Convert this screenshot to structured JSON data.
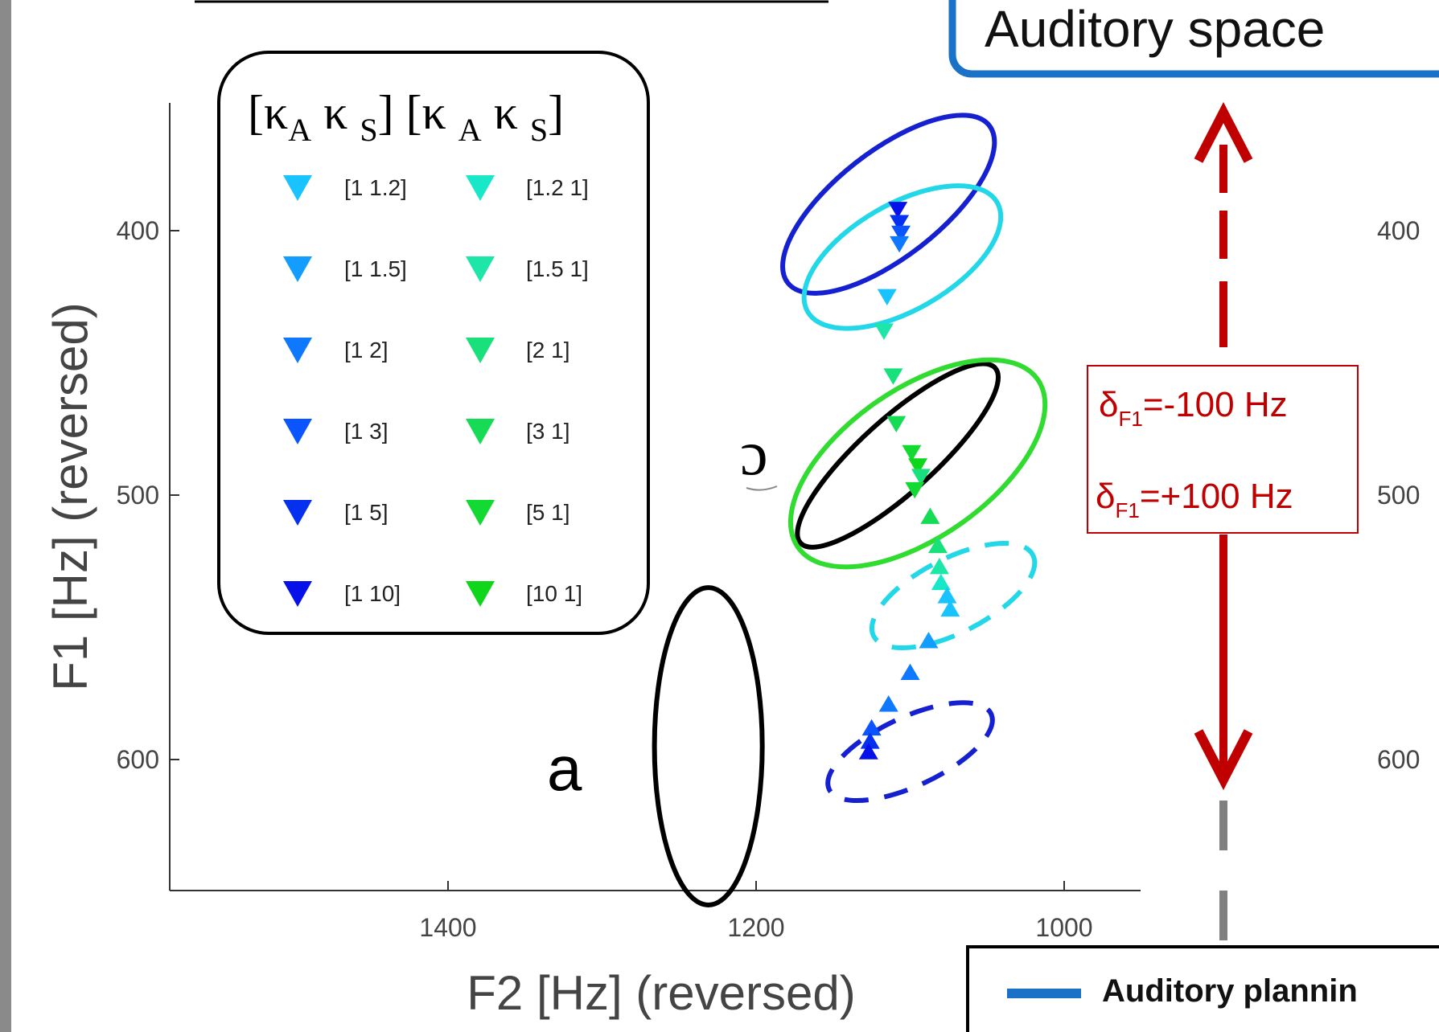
{
  "chart_data": {
    "type": "scatter",
    "xlabel": "F2 [Hz] (reversed)",
    "ylabel": "F1 [Hz] (reversed)",
    "x_reversed": true,
    "y_reversed": true,
    "xlim": [
      1000,
      1580
    ],
    "ylim": [
      350,
      650
    ],
    "xticks": [
      1400,
      1200,
      1000
    ],
    "yticks": [
      400,
      500,
      600
    ],
    "right_yticks": [
      400,
      500,
      600
    ],
    "vowel_labels": [
      "ɔ",
      "a"
    ],
    "legend": {
      "header": "[κA κS] [κA κS]",
      "left_column": [
        "[1 1.2]",
        "[1 1.5]",
        "[1 2]",
        "[1 3]",
        "[1 5]",
        "[1 10]"
      ],
      "right_column": [
        "[1.2 1]",
        "[1.5 1]",
        "[2 1]",
        "[3 1]",
        "[5 1]",
        "[10 1]"
      ],
      "left_colors": [
        "#19c3ff",
        "#139dff",
        "#0e78ff",
        "#0a55ff",
        "#0630f0",
        "#0511e8"
      ],
      "right_colors": [
        "#19e8c8",
        "#1de6a8",
        "#18e07a",
        "#16dc55",
        "#12da32",
        "#0fd61a"
      ]
    },
    "ellipses": [
      {
        "label": "ɔ",
        "color": "#000000",
        "style": "solid",
        "cx": 1108,
        "cy": 485,
        "rx": 85,
        "ry": 14,
        "angle": -42
      },
      {
        "label": "a",
        "color": "#000000",
        "style": "solid",
        "cx": 1231,
        "cy": 595,
        "rx": 35,
        "ry": 60,
        "angle": 0
      },
      {
        "color": "#1520d0",
        "style": "solid",
        "cx": 1114,
        "cy": 390,
        "rx": 83,
        "ry": 20,
        "angle": -38
      },
      {
        "color": "#22d8e8",
        "style": "solid",
        "cx": 1105,
        "cy": 410,
        "rx": 71,
        "ry": 20,
        "angle": -30
      },
      {
        "color": "#2fdc2f",
        "style": "solid",
        "cx": 1095,
        "cy": 488,
        "rx": 95,
        "ry": 28,
        "angle": -35
      },
      {
        "color": "#22d8e8",
        "style": "dashed",
        "cx": 1072,
        "cy": 538,
        "rx": 58,
        "ry": 14,
        "angle": -27
      },
      {
        "color": "#1520d0",
        "style": "dashed",
        "cx": 1100,
        "cy": 597,
        "rx": 58,
        "ry": 13,
        "angle": -25
      }
    ],
    "down_triangles": [
      {
        "x": 1108,
        "y": 392,
        "color": "#0511e8"
      },
      {
        "x": 1107,
        "y": 397,
        "color": "#0630f0"
      },
      {
        "x": 1106,
        "y": 401,
        "color": "#0a55ff"
      },
      {
        "x": 1107,
        "y": 405,
        "color": "#0e78ff"
      },
      {
        "x": 1115,
        "y": 425,
        "color": "#19c3ff"
      },
      {
        "x": 1117,
        "y": 438,
        "color": "#1de6a8"
      },
      {
        "x": 1111,
        "y": 455,
        "color": "#18e07a"
      },
      {
        "x": 1109,
        "y": 473,
        "color": "#16dc55"
      },
      {
        "x": 1099,
        "y": 484,
        "color": "#12da32"
      },
      {
        "x": 1095,
        "y": 489,
        "color": "#0fd61a"
      },
      {
        "x": 1093,
        "y": 493,
        "color": "#18e07a"
      },
      {
        "x": 1097,
        "y": 498,
        "color": "#12da32"
      }
    ],
    "up_triangles": [
      {
        "x": 1087,
        "y": 508,
        "color": "#16dc55"
      },
      {
        "x": 1082,
        "y": 519,
        "color": "#18e07a"
      },
      {
        "x": 1081,
        "y": 527,
        "color": "#1de6a8"
      },
      {
        "x": 1080,
        "y": 533,
        "color": "#19e8c8"
      },
      {
        "x": 1076,
        "y": 538,
        "color": "#19c3ff"
      },
      {
        "x": 1074,
        "y": 543,
        "color": "#19c3ff"
      },
      {
        "x": 1088,
        "y": 555,
        "color": "#139dff"
      },
      {
        "x": 1100,
        "y": 567,
        "color": "#0e78ff"
      },
      {
        "x": 1114,
        "y": 579,
        "color": "#0e78ff"
      },
      {
        "x": 1125,
        "y": 588,
        "color": "#0a55ff"
      },
      {
        "x": 1126,
        "y": 593,
        "color": "#0630f0"
      },
      {
        "x": 1127,
        "y": 597,
        "color": "#0511e8"
      }
    ]
  },
  "annotations": {
    "title_box": "Auditory space",
    "delta_minus": {
      "symbol": "δ",
      "sub": "F1",
      "value": "=-100 Hz"
    },
    "delta_plus": {
      "symbol": "δ",
      "sub": "F1",
      "value": "=+100 Hz"
    },
    "bottom_legend_label": "Auditory plannin",
    "colors": {
      "arrow": "#c00000",
      "title_border": "#1a72c8",
      "bottom_line": "#1a72c8",
      "gray_dash": "#808080"
    }
  }
}
